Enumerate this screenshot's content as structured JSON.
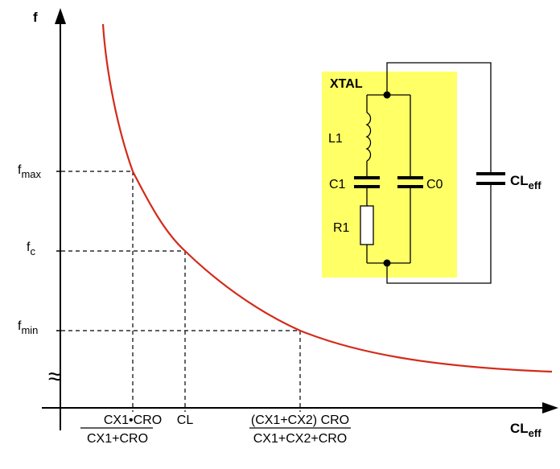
{
  "axes": {
    "y_label": "f",
    "x_label_main": "CL",
    "x_label_sub": "eff"
  },
  "y_ticks": [
    {
      "main": "f",
      "sub": "max"
    },
    {
      "main": "f",
      "sub": "c"
    },
    {
      "main": "f",
      "sub": "min"
    }
  ],
  "x_ticks": {
    "tick1": {
      "numerator": "CX1•CRO",
      "denominator": "CX1+CRO"
    },
    "tick2": {
      "label": "CL"
    },
    "tick3": {
      "numerator": "(CX1+CX2) CRO",
      "denominator": "CX1+CX2+CRO"
    }
  },
  "break_symbol": "≈",
  "circuit": {
    "title": "XTAL",
    "inductor": "L1",
    "capacitor_series": "C1",
    "capacitor_parallel": "C0",
    "resistor": "R1",
    "load_cap_main": "CL",
    "load_cap_sub": "eff"
  },
  "colors": {
    "curve": "#d42a1a",
    "xtal_box": "#ffff66",
    "lines": "#000000"
  }
}
